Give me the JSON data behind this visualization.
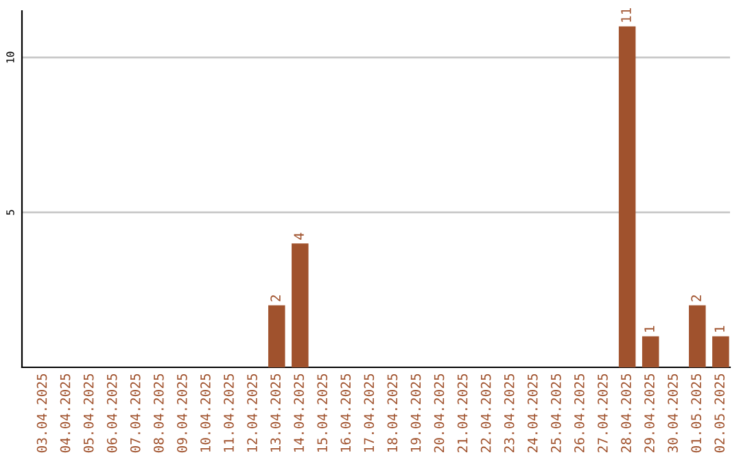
{
  "chart_data": {
    "type": "bar",
    "categories": [
      "03.04.2025",
      "04.04.2025",
      "05.04.2025",
      "06.04.2025",
      "07.04.2025",
      "08.04.2025",
      "09.04.2025",
      "10.04.2025",
      "11.04.2025",
      "12.04.2025",
      "13.04.2025",
      "14.04.2025",
      "15.04.2025",
      "16.04.2025",
      "17.04.2025",
      "18.04.2025",
      "19.04.2025",
      "20.04.2025",
      "21.04.2025",
      "22.04.2025",
      "23.04.2025",
      "24.04.2025",
      "25.04.2025",
      "26.04.2025",
      "27.04.2025",
      "28.04.2025",
      "29.04.2025",
      "30.04.2025",
      "01.05.2025",
      "02.05.2025"
    ],
    "values": [
      0,
      0,
      0,
      0,
      0,
      0,
      0,
      0,
      0,
      0,
      2,
      4,
      0,
      0,
      0,
      0,
      0,
      0,
      0,
      0,
      0,
      0,
      0,
      0,
      0,
      11,
      1,
      0,
      2,
      1
    ],
    "value_labels": [
      null,
      null,
      null,
      null,
      null,
      null,
      null,
      null,
      null,
      null,
      "2",
      "4",
      null,
      null,
      null,
      null,
      null,
      null,
      null,
      null,
      null,
      null,
      null,
      null,
      null,
      "11",
      "1",
      null,
      "2",
      "1"
    ],
    "color": "#a0522d",
    "ylim": [
      0,
      11.5
    ],
    "yticks": [
      5,
      10
    ],
    "grid": "y"
  }
}
